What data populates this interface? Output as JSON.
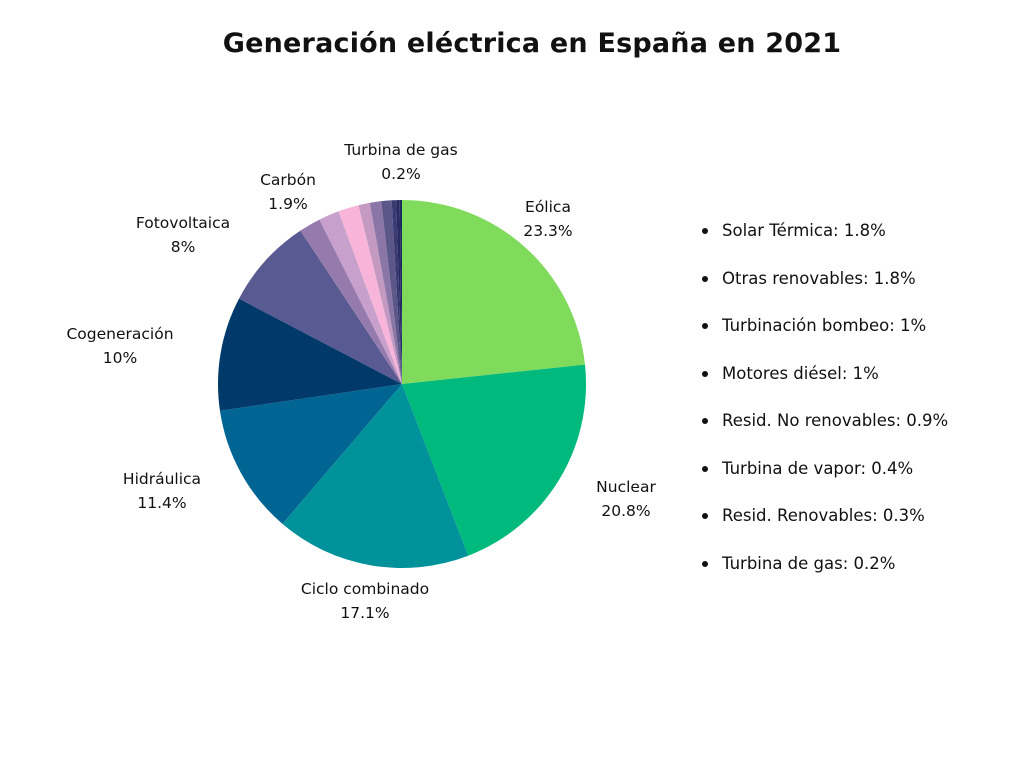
{
  "chart_data": {
    "type": "pie",
    "title": "Generación eléctrica en España en 2021",
    "slices": [
      {
        "name": "Eólica",
        "value": 23.3,
        "display": "23.3%",
        "color": "#80db5c"
      },
      {
        "name": "Nuclear",
        "value": 20.8,
        "display": "20.8%",
        "color": "#00b97c"
      },
      {
        "name": "Ciclo combinado",
        "value": 17.1,
        "display": "17.1%",
        "color": "#00929a"
      },
      {
        "name": "Hidráulica",
        "value": 11.4,
        "display": "11.4%",
        "color": "#006593"
      },
      {
        "name": "Cogeneración",
        "value": 10,
        "display": "10%",
        "color": "#00396a"
      },
      {
        "name": "Fotovoltaica",
        "value": 8,
        "display": "8%",
        "color": "#5a5a93"
      },
      {
        "name": "Carbón",
        "value": 1.9,
        "display": "1.9%",
        "color": "#957aad"
      },
      {
        "name": "Solar Térmica",
        "value": 1.8,
        "display": "1.8%",
        "color": "#c8a0cc"
      },
      {
        "name": "Otras renovables",
        "value": 1.8,
        "display": "1.8%",
        "color": "#f8b5d9"
      },
      {
        "name": "Turbinación bombeo",
        "value": 1,
        "display": "1%",
        "color": "#c49ac3"
      },
      {
        "name": "Motores diésel",
        "value": 1,
        "display": "1%",
        "color": "#8a77a8"
      },
      {
        "name": "Resid. No renovables",
        "value": 0.9,
        "display": "0.9%",
        "color": "#5b5788"
      },
      {
        "name": "Turbina de vapor",
        "value": 0.4,
        "display": "0.4%",
        "color": "#3a3a73"
      },
      {
        "name": "Resid. Renovables",
        "value": 0.3,
        "display": "0.3%",
        "color": "#2a2a63"
      },
      {
        "name": "Turbina de gas",
        "value": 0.2,
        "display": "0.2%",
        "color": "#1d2a5a"
      }
    ],
    "slice_labels": [
      {
        "name": "Eólica",
        "pct": "23.3%"
      },
      {
        "name": "Nuclear",
        "pct": "20.8%"
      },
      {
        "name": "Ciclo combinado",
        "pct": "17.1%"
      },
      {
        "name": "Hidráulica",
        "pct": "11.4%"
      },
      {
        "name": "Cogeneración",
        "pct": "10%"
      },
      {
        "name": "Fotovoltaica",
        "pct": "8%"
      },
      {
        "name": "Carbón",
        "pct": "1.9%"
      },
      {
        "name": "Turbina de gas",
        "pct": "0.2%"
      }
    ],
    "legend": [
      "Solar Térmica: 1.8%",
      "Otras renovables: 1.8%",
      "Turbinación bombeo: 1%",
      "Motores diésel: 1%",
      "Resid. No renovables: 0.9%",
      "Turbina de vapor: 0.4%",
      "Resid. Renovables: 0.3%",
      "Turbina de gas: 0.2%"
    ],
    "legend_placement": "right"
  }
}
